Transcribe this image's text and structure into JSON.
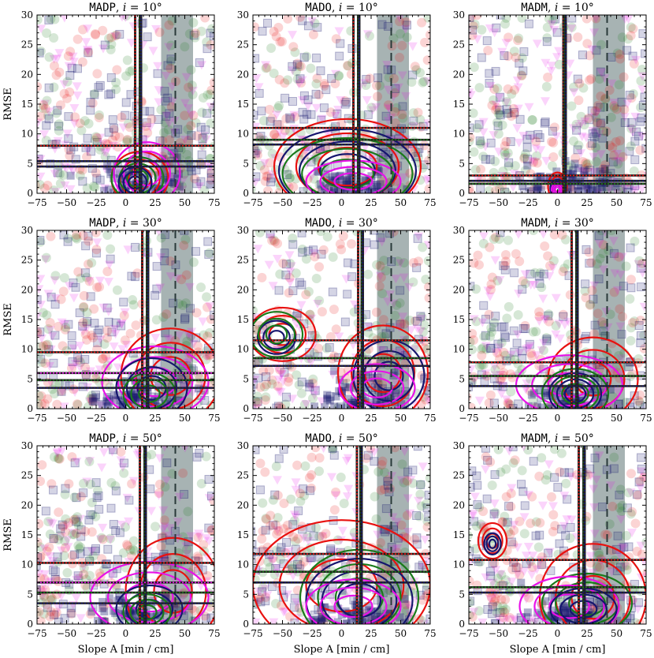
{
  "chart_data": {
    "type": "scatter",
    "xlabel": "Slope A [min / cm]",
    "ylabel": "RMSE",
    "xlim": [
      -75,
      75
    ],
    "ylim": [
      0,
      30
    ],
    "xticks": [
      -75,
      -50,
      -25,
      0,
      25,
      50,
      75
    ],
    "yticks": [
      0,
      5,
      10,
      15,
      20,
      25,
      30
    ],
    "grid": false,
    "colors": {
      "red": "#e8110f",
      "green": "#1a7a1a",
      "navy": "#16166e",
      "magenta": "#e812e8",
      "band": "#5f7474"
    },
    "panels": [
      {
        "model": "MADP",
        "incl": "10",
        "band": [
          30,
          57
        ],
        "dash_x": 42,
        "vlines": [
          8,
          12,
          13
        ],
        "hlines": [
          {
            "y": 8.0,
            "c": "red"
          },
          {
            "y": 5.4,
            "c": "navy"
          },
          {
            "y": 4.5,
            "c": "navy"
          }
        ],
        "kde": [
          {
            "c": "red",
            "cx": 12,
            "cy": 2.5,
            "rx": 24,
            "ry": 4.5
          },
          {
            "c": "green",
            "cx": 10,
            "cy": 2.5,
            "rx": 22,
            "ry": 3.6
          },
          {
            "c": "magenta",
            "cx": 18,
            "cy": 3.4,
            "rx": 28,
            "ry": 5.2
          },
          {
            "c": "navy",
            "cx": 8,
            "cy": 1.8,
            "rx": 14,
            "ry": 2.6
          }
        ]
      },
      {
        "model": "MADO",
        "incl": "10",
        "band": [
          30,
          57
        ],
        "dash_x": 42,
        "vlines": [
          10,
          14,
          15
        ],
        "hlines": [
          {
            "y": 11.0,
            "c": "red"
          },
          {
            "y": 9.0,
            "c": "green"
          },
          {
            "y": 8.2,
            "c": "navy"
          }
        ],
        "kde": [
          {
            "c": "red",
            "cx": 5,
            "cy": 4.5,
            "rx": 62,
            "ry": 8
          },
          {
            "c": "navy",
            "cx": 5,
            "cy": 3.8,
            "rx": 58,
            "ry": 7
          },
          {
            "c": "green",
            "cx": 5,
            "cy": 3.3,
            "rx": 55,
            "ry": 6
          },
          {
            "c": "magenta",
            "cx": 10,
            "cy": 2.0,
            "rx": 40,
            "ry": 3.5
          }
        ]
      },
      {
        "model": "MADM",
        "incl": "10",
        "band": [
          30,
          57
        ],
        "dash_x": 42,
        "vlines": [
          5,
          6,
          7
        ],
        "hlines": [
          {
            "y": 3.0,
            "c": "red"
          },
          {
            "y": 2.1,
            "c": "navy"
          },
          {
            "y": 1.6,
            "c": "green"
          }
        ],
        "kde": [
          {
            "c": "red",
            "cx": 0,
            "cy": 1.2,
            "rx": 8,
            "ry": 2.3
          },
          {
            "c": "navy",
            "cx": 0,
            "cy": 0.8,
            "rx": 6,
            "ry": 1.5
          },
          {
            "c": "magenta",
            "cx": 0,
            "cy": 0.6,
            "rx": 5,
            "ry": 1.1
          }
        ]
      },
      {
        "model": "MADP",
        "incl": "30",
        "band": [
          30,
          57
        ],
        "dash_x": 42,
        "vlines": [
          14,
          18,
          19
        ],
        "hlines": [
          {
            "y": 9.5,
            "c": "red"
          },
          {
            "y": 6.0,
            "c": "magenta"
          },
          {
            "y": 4.8,
            "c": "green"
          },
          {
            "y": 3.5,
            "c": "navy"
          }
        ],
        "kde": [
          {
            "c": "red",
            "cx": 38,
            "cy": 5.5,
            "rx": 42,
            "ry": 8
          },
          {
            "c": "magenta",
            "cx": 25,
            "cy": 4.5,
            "rx": 45,
            "ry": 6
          },
          {
            "c": "navy",
            "cx": 22,
            "cy": 3.5,
            "rx": 30,
            "ry": 5
          },
          {
            "c": "green",
            "cx": 20,
            "cy": 2.5,
            "rx": 22,
            "ry": 3.5
          }
        ]
      },
      {
        "model": "MADO",
        "incl": "30",
        "band": [
          30,
          57
        ],
        "dash_x": 42,
        "vlines": [
          14,
          17,
          18
        ],
        "hlines": [
          {
            "y": 11.5,
            "c": "red"
          },
          {
            "y": 8.5,
            "c": "green"
          },
          {
            "y": 7.2,
            "c": "navy"
          }
        ],
        "kde": [
          {
            "c": "red",
            "cx": -50,
            "cy": 12.5,
            "rx": 28,
            "ry": 4.5
          },
          {
            "c": "navy",
            "cx": -55,
            "cy": 12.0,
            "rx": 16,
            "ry": 2.8
          },
          {
            "c": "green",
            "cx": -55,
            "cy": 12.5,
            "rx": 22,
            "ry": 3.8
          },
          {
            "c": "red",
            "cx": 35,
            "cy": 6.0,
            "rx": 38,
            "ry": 8
          },
          {
            "c": "navy",
            "cx": 40,
            "cy": 5.5,
            "rx": 30,
            "ry": 6
          },
          {
            "c": "magenta",
            "cx": 30,
            "cy": 3.5,
            "rx": 32,
            "ry": 4
          }
        ]
      },
      {
        "model": "MADM",
        "incl": "30",
        "band": [
          30,
          57
        ],
        "dash_x": 42,
        "vlines": [
          12,
          16,
          17
        ],
        "hlines": [
          {
            "y": 7.8,
            "c": "red"
          },
          {
            "y": 5.5,
            "c": "green"
          },
          {
            "y": 3.8,
            "c": "navy"
          }
        ],
        "kde": [
          {
            "c": "red",
            "cx": 30,
            "cy": 5.0,
            "rx": 38,
            "ry": 7
          },
          {
            "c": "magenta",
            "cx": 10,
            "cy": 4.0,
            "rx": 45,
            "ry": 5
          },
          {
            "c": "navy",
            "cx": 15,
            "cy": 2.5,
            "rx": 22,
            "ry": 3.5
          },
          {
            "c": "green",
            "cx": 15,
            "cy": 2.5,
            "rx": 28,
            "ry": 4.2
          }
        ]
      },
      {
        "model": "MADP",
        "incl": "50",
        "band": [
          30,
          57
        ],
        "dash_x": 42,
        "vlines": [
          12,
          16,
          17
        ],
        "hlines": [
          {
            "y": 10.3,
            "c": "red"
          },
          {
            "y": 7.0,
            "c": "magenta"
          },
          {
            "y": 5.3,
            "c": "green"
          },
          {
            "y": 3.5,
            "c": "navy"
          }
        ],
        "kde": [
          {
            "c": "red",
            "cx": 40,
            "cy": 5.5,
            "rx": 40,
            "ry": 9
          },
          {
            "c": "magenta",
            "cx": 20,
            "cy": 4.5,
            "rx": 50,
            "ry": 6
          },
          {
            "c": "navy",
            "cx": 20,
            "cy": 2.5,
            "rx": 28,
            "ry": 4
          },
          {
            "c": "green",
            "cx": 18,
            "cy": 2.0,
            "rx": 20,
            "ry": 3
          }
        ]
      },
      {
        "model": "MADO",
        "incl": "50",
        "band": [
          30,
          57
        ],
        "dash_x": 42,
        "vlines": [
          13,
          16,
          17
        ],
        "hlines": [
          {
            "y": 11.8,
            "c": "red"
          },
          {
            "y": 8.8,
            "c": "green"
          },
          {
            "y": 7.0,
            "c": "navy"
          }
        ],
        "kde": [
          {
            "c": "red",
            "cx": 0,
            "cy": 6.5,
            "rx": 75,
            "ry": 11
          },
          {
            "c": "green",
            "cx": 15,
            "cy": 4.5,
            "rx": 50,
            "ry": 8
          },
          {
            "c": "navy",
            "cx": 15,
            "cy": 4.0,
            "rx": 45,
            "ry": 7
          },
          {
            "c": "magenta",
            "cx": 10,
            "cy": 3.0,
            "rx": 40,
            "ry": 4.5
          }
        ]
      },
      {
        "model": "MADM",
        "incl": "50",
        "band": [
          30,
          57
        ],
        "dash_x": 42,
        "vlines": [
          18,
          22,
          23
        ],
        "hlines": [
          {
            "y": 10.8,
            "c": "red"
          },
          {
            "y": 6.2,
            "c": "green"
          },
          {
            "y": 5.3,
            "c": "navy"
          }
        ],
        "kde": [
          {
            "c": "red",
            "cx": -55,
            "cy": 14.0,
            "rx": 12,
            "ry": 3
          },
          {
            "c": "navy",
            "cx": -55,
            "cy": 13.5,
            "rx": 7,
            "ry": 1.8
          },
          {
            "c": "red",
            "cx": 30,
            "cy": 4.5,
            "rx": 45,
            "ry": 9
          },
          {
            "c": "green",
            "cx": 25,
            "cy": 3.5,
            "rx": 38,
            "ry": 5
          },
          {
            "c": "magenta",
            "cx": 10,
            "cy": 3.0,
            "rx": 42,
            "ry": 5
          },
          {
            "c": "navy",
            "cx": 22,
            "cy": 2.5,
            "rx": 28,
            "ry": 3.5
          }
        ]
      }
    ]
  }
}
